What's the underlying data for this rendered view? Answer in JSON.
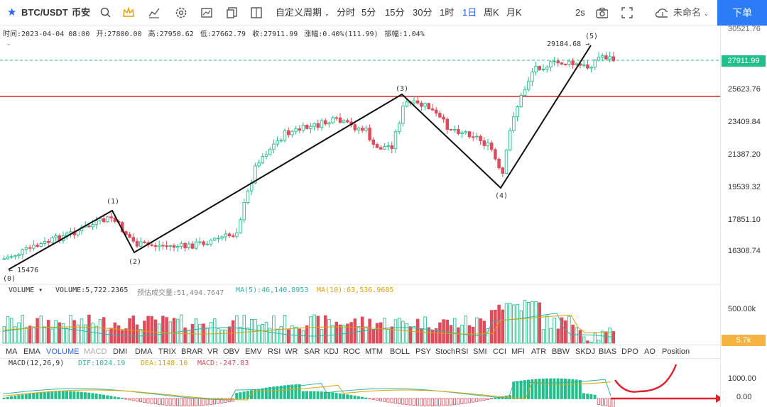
{
  "toolbar": {
    "symbol": "BTC/USDT",
    "exchange": "币安",
    "custom_period": "自定义周期",
    "intervals": [
      "分时",
      "5分",
      "15分",
      "30分",
      "1时",
      "1日",
      "周K",
      "月K"
    ],
    "active_interval": "1日",
    "refresh": "2s",
    "layout_name": "未命名",
    "order_button": "下单"
  },
  "info": {
    "time": "时间:2023-04-04 08:00",
    "open": "开:27800.00",
    "high": "高:27950.62",
    "low": "低:27662.79",
    "close": "收:27911.99",
    "change": "涨幅:0.40%(111.99)",
    "amplitude": "振幅:1.04%"
  },
  "price_axis": {
    "labels": [
      "27911.99",
      "25623.76",
      "23409.84",
      "21387.20",
      "19539.32",
      "17851.10",
      "16308.74"
    ],
    "top_label": "30521.76",
    "last_price": "27911.99"
  },
  "annotations": {
    "wave0": "(0)",
    "wave1": "(1)",
    "wave2": "(2)",
    "wave3": "(3)",
    "wave4": "(4)",
    "wave5": "(5)",
    "low_label": "← 15476",
    "high_label": "29184.68 →"
  },
  "volume": {
    "title": "VOLUME",
    "value": "VOLUME:5,722.2365",
    "est": "预估成交量:51,494.7647",
    "ma5": "MA(5):46,140.8953",
    "ma10": "MA(10):63,536.9685",
    "axis_label": "500.00k",
    "last": "5.7k"
  },
  "indicators": [
    "MA",
    "EMA",
    "VOLUME",
    "MACD",
    "DMI",
    "DMA",
    "TRIX",
    "BRAR",
    "VR",
    "OBV",
    "EMV",
    "RSI",
    "WR",
    "SAR",
    "KDJ",
    "ROC",
    "MTM",
    "BOLL",
    "PSY",
    "StochRSI",
    "SMI",
    "CCI",
    "MFI",
    "ATR",
    "BBW",
    "SKDJ",
    "BIAS",
    "DPO",
    "AO",
    "Position"
  ],
  "macd": {
    "title": "MACD(12,26,9)",
    "dif": "DIF:1024.19",
    "dea": "DEA:1148.10",
    "macd": "MACD:-247.83",
    "axis_1000": "1000.00",
    "axis_0": "0.00"
  },
  "colors": {
    "up": "#21c08b",
    "down": "#e04a59",
    "accent": "#2962ff",
    "red_line": "#e0202a"
  }
}
